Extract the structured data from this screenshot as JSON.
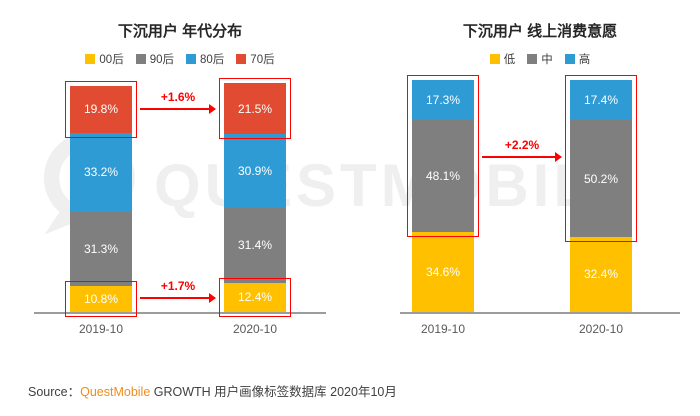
{
  "watermark": {
    "text": "QUESTMOBILE"
  },
  "source": {
    "prefix": "Source：",
    "brand": "QuestMobile",
    "suffix": " GROWTH 用户画像标签数据库 2020年10月"
  },
  "colors": {
    "annotation_red": "#FF0000",
    "brand_orange": "#F28B1B",
    "axis_gray": "#9C9C9C",
    "yellow": "#FFC000",
    "gray": "#7F7F7F",
    "blue": "#2E9BD5",
    "red": "#E04B31"
  },
  "chart_data": [
    {
      "type": "bar",
      "stacked": true,
      "title": "下沉用户 年代分布",
      "categories": [
        "2019-10",
        "2020-10"
      ],
      "series": [
        {
          "name": "00后",
          "color": "#FFC000",
          "values": [
            10.8,
            12.4
          ]
        },
        {
          "name": "90后",
          "color": "#7F7F7F",
          "values": [
            31.3,
            31.4
          ]
        },
        {
          "name": "80后",
          "color": "#2E9BD5",
          "values": [
            33.2,
            30.9
          ]
        },
        {
          "name": "70后",
          "color": "#E04B31",
          "values": [
            19.8,
            21.5
          ]
        }
      ],
      "legend": [
        "00后",
        "90后",
        "80后",
        "70后"
      ],
      "legend_position": "top",
      "value_suffix": "%",
      "ylim": [
        0,
        100
      ],
      "grid": false,
      "highlights": [
        {
          "series": [
            "70后"
          ],
          "note": "+1.6%"
        },
        {
          "series": [
            "00后"
          ],
          "note": "+1.7%"
        }
      ]
    },
    {
      "type": "bar",
      "stacked": true,
      "title": "下沉用户 线上消费意愿",
      "categories": [
        "2019-10",
        "2020-10"
      ],
      "series": [
        {
          "name": "低",
          "color": "#FFC000",
          "values": [
            34.6,
            32.4
          ]
        },
        {
          "name": "中",
          "color": "#7F7F7F",
          "values": [
            48.1,
            50.2
          ]
        },
        {
          "name": "高",
          "color": "#2E9BD5",
          "values": [
            17.3,
            17.4
          ]
        }
      ],
      "legend": [
        "低",
        "中",
        "高"
      ],
      "legend_position": "top",
      "value_suffix": "%",
      "ylim": [
        0,
        100
      ],
      "grid": false,
      "highlights": [
        {
          "series": [
            "中",
            "高"
          ],
          "note": "+2.2%"
        }
      ]
    }
  ]
}
